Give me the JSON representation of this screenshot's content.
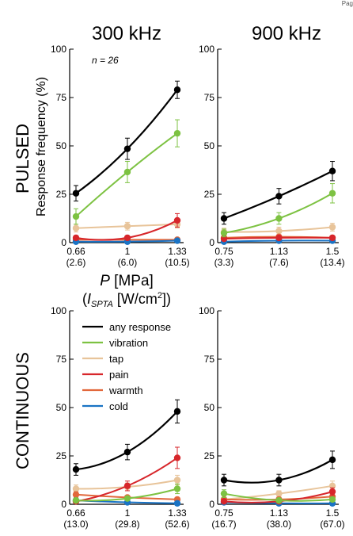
{
  "page_corner": "Pag",
  "colors": {
    "any response": "#000000",
    "vibration": "#7dc242",
    "tap": "#e8c49a",
    "pain": "#d7262b",
    "warmth": "#e2683c",
    "cold": "#1a73c4"
  },
  "legend_entries": [
    "any response",
    "vibration",
    "tap",
    "pain",
    "warmth",
    "cold"
  ],
  "row_labels": {
    "pulsed": "PULSED",
    "continuous": "CONTINUOUS"
  },
  "ylabel": "Response frequency (%)",
  "xlabel": {
    "main": "P [MPa]",
    "sub": "(ISPTA [W/cm2])"
  },
  "annotation": "n = 26",
  "chart_data": [
    {
      "type": "line",
      "title": "300 kHz",
      "row": "PULSED",
      "ylim": [
        0,
        100
      ],
      "yticks": [
        0,
        25,
        50,
        75,
        100
      ],
      "x": [
        0.66,
        1.0,
        1.33
      ],
      "xtick_labels": [
        "0.66",
        "1",
        "1.33"
      ],
      "xtick_sublabels": [
        "(2.6)",
        "(6.0)",
        "(10.5)"
      ],
      "series": [
        {
          "name": "any response",
          "values": [
            25.5,
            48.5,
            79
          ],
          "err": [
            4,
            5.5,
            4.5
          ]
        },
        {
          "name": "vibration",
          "values": [
            13.5,
            36.5,
            56.5
          ],
          "err": [
            4,
            5.5,
            7
          ]
        },
        {
          "name": "tap",
          "values": [
            7.5,
            8.5,
            9.5
          ],
          "err": [
            2,
            2,
            2
          ]
        },
        {
          "name": "pain",
          "values": [
            2.5,
            2.5,
            11.5
          ],
          "err": [
            1,
            1,
            3.5
          ]
        },
        {
          "name": "warmth",
          "values": [
            1.5,
            1.5,
            1.5
          ],
          "err": [
            0.7,
            0.7,
            0.7
          ]
        },
        {
          "name": "cold",
          "values": [
            0.5,
            0.5,
            1
          ],
          "err": [
            0.5,
            0.5,
            0.5
          ]
        }
      ]
    },
    {
      "type": "line",
      "title": "900 kHz",
      "row": "PULSED",
      "ylim": [
        0,
        100
      ],
      "yticks": [
        0,
        25,
        50,
        75,
        100
      ],
      "x": [
        0.75,
        1.13,
        1.5
      ],
      "xtick_labels": [
        "0.75",
        "1.13",
        "1.5"
      ],
      "xtick_sublabels": [
        "(3.3)",
        "(7.6)",
        "(13.4)"
      ],
      "series": [
        {
          "name": "any response",
          "values": [
            12.5,
            24,
            37
          ],
          "err": [
            3,
            4,
            5
          ]
        },
        {
          "name": "vibration",
          "values": [
            5,
            12.5,
            25.5
          ],
          "err": [
            2,
            3,
            5
          ]
        },
        {
          "name": "tap",
          "values": [
            5.5,
            6,
            8
          ],
          "err": [
            2,
            2,
            2
          ]
        },
        {
          "name": "pain",
          "values": [
            2,
            2.5,
            2.5
          ],
          "err": [
            1,
            1,
            1
          ]
        },
        {
          "name": "warmth",
          "values": [
            2.5,
            3,
            2.5
          ],
          "err": [
            1,
            1,
            1
          ]
        },
        {
          "name": "cold",
          "values": [
            0.5,
            1,
            1
          ],
          "err": [
            0.5,
            0.5,
            0.5
          ]
        }
      ]
    },
    {
      "type": "line",
      "title": "",
      "row": "CONTINUOUS",
      "ylim": [
        0,
        100
      ],
      "yticks": [
        0,
        25,
        50,
        75,
        100
      ],
      "x": [
        0.66,
        1.0,
        1.33
      ],
      "xtick_labels": [
        "0.66",
        "1",
        "1.33"
      ],
      "xtick_sublabels": [
        "(13.0)",
        "(29.8)",
        "(52.6)"
      ],
      "series": [
        {
          "name": "any response",
          "values": [
            18,
            27,
            48
          ],
          "err": [
            3,
            4,
            6
          ]
        },
        {
          "name": "vibration",
          "values": [
            2,
            3,
            8
          ],
          "err": [
            1,
            1,
            2.5
          ]
        },
        {
          "name": "tap",
          "values": [
            8,
            9,
            12.5
          ],
          "err": [
            2,
            2,
            2.5
          ]
        },
        {
          "name": "pain",
          "values": [
            1.5,
            9.5,
            24
          ],
          "err": [
            1,
            2.5,
            5.5
          ]
        },
        {
          "name": "warmth",
          "values": [
            5,
            3.5,
            2.5
          ],
          "err": [
            1.5,
            1,
            1
          ]
        },
        {
          "name": "cold",
          "values": [
            2,
            1,
            0.5
          ],
          "err": [
            1,
            0.5,
            0.5
          ]
        }
      ]
    },
    {
      "type": "line",
      "title": "",
      "row": "CONTINUOUS",
      "ylim": [
        0,
        100
      ],
      "yticks": [
        0,
        25,
        50,
        75,
        100
      ],
      "x": [
        0.75,
        1.13,
        1.5
      ],
      "xtick_labels": [
        "0.75",
        "1.13",
        "1.5"
      ],
      "xtick_sublabels": [
        "(16.7)",
        "(38.0)",
        "(67.0)"
      ],
      "series": [
        {
          "name": "any response",
          "values": [
            12.5,
            12.5,
            23
          ],
          "err": [
            3,
            3,
            4.5
          ]
        },
        {
          "name": "vibration",
          "values": [
            5.5,
            2,
            2.5
          ],
          "err": [
            2,
            1,
            1
          ]
        },
        {
          "name": "tap",
          "values": [
            2.5,
            5.5,
            9.5
          ],
          "err": [
            1,
            1.5,
            2.5
          ]
        },
        {
          "name": "pain",
          "values": [
            1.5,
            1.5,
            6.5
          ],
          "err": [
            1,
            1,
            2
          ]
        },
        {
          "name": "warmth",
          "values": [
            2.5,
            2.5,
            4
          ],
          "err": [
            1,
            1,
            1.5
          ]
        },
        {
          "name": "cold",
          "values": [
            1,
            0.5,
            0.5
          ],
          "err": [
            0.5,
            0.5,
            0.5
          ]
        }
      ]
    }
  ]
}
